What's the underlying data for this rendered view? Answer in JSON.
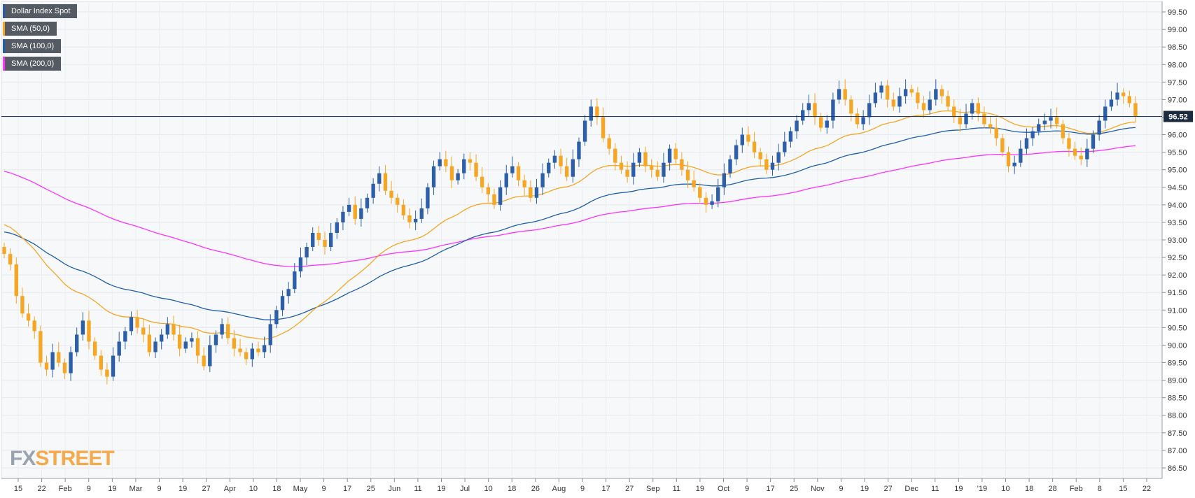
{
  "legend": [
    {
      "label": "Dollar Index Spot",
      "color": "#2a5aa8"
    },
    {
      "label": "SMA (50,0)",
      "color": "#f5a623"
    },
    {
      "label": "SMA (100,0)",
      "color": "#1f5fa8"
    },
    {
      "label": "SMA (200,0)",
      "color": "#ff33ff"
    }
  ],
  "logo": {
    "fx": "FX",
    "street": "STREET"
  },
  "chart_data": {
    "type": "candlestick",
    "y_axis": {
      "ticks": [
        "99.50",
        "99.00",
        "98.50",
        "98.00",
        "97.50",
        "97.00",
        "96.50",
        "96.00",
        "95.50",
        "95.00",
        "94.50",
        "94.00",
        "93.50",
        "93.00",
        "92.50",
        "92.00",
        "91.50",
        "91.00",
        "90.50",
        "90.00",
        "89.50",
        "89.00",
        "88.50",
        "88.00",
        "87.50",
        "87.00",
        "86.50"
      ],
      "range": [
        86.2,
        99.8
      ]
    },
    "x_axis": {
      "labels": [
        "15",
        "22",
        "Feb",
        "9",
        "19",
        "Mar",
        "9",
        "19",
        "27",
        "Apr",
        "10",
        "18",
        "May",
        "9",
        "17",
        "25",
        "Jun",
        "11",
        "19",
        "Jul",
        "10",
        "18",
        "26",
        "Aug",
        "9",
        "17",
        "27",
        "Sep",
        "11",
        "19",
        "Oct",
        "9",
        "17",
        "25",
        "Nov",
        "9",
        "19",
        "27",
        "Dec",
        "11",
        "19",
        "'19",
        "10",
        "18",
        "28",
        "Feb",
        "8",
        "15",
        "22"
      ]
    },
    "current_price": {
      "value": 96.52,
      "label": "96.52"
    },
    "colors": {
      "bull": "#2c5fa8",
      "bear": "#f5a623",
      "sma50": "#f5a623",
      "sma100": "#1f5fa8",
      "sma200": "#ff33ff",
      "price_line": "#1c3d6e"
    },
    "series": {
      "close": [
        92.6,
        92.3,
        91.4,
        90.9,
        90.7,
        90.4,
        89.5,
        89.3,
        89.8,
        89.5,
        89.2,
        89.8,
        90.3,
        90.7,
        90.1,
        89.7,
        89.3,
        89.1,
        89.7,
        90.1,
        90.4,
        90.8,
        90.5,
        90.3,
        89.8,
        90.1,
        90.3,
        90.6,
        90.3,
        89.9,
        90.1,
        90.2,
        89.7,
        89.4,
        90.0,
        90.3,
        90.6,
        90.2,
        89.9,
        89.8,
        89.6,
        89.9,
        89.8,
        90.0,
        90.6,
        91.0,
        91.4,
        91.6,
        92.1,
        92.5,
        92.8,
        93.2,
        93.0,
        92.8,
        93.2,
        93.5,
        93.8,
        94.0,
        93.6,
        93.9,
        94.2,
        94.6,
        94.9,
        94.4,
        94.2,
        94.0,
        93.7,
        93.5,
        93.6,
        93.9,
        94.5,
        95.1,
        95.3,
        95.1,
        94.7,
        94.9,
        95.3,
        95.2,
        94.8,
        94.5,
        94.3,
        94.0,
        94.5,
        94.9,
        95.1,
        94.7,
        94.5,
        94.2,
        94.5,
        94.9,
        95.2,
        95.4,
        95.1,
        94.8,
        95.3,
        95.8,
        96.4,
        96.8,
        96.5,
        95.9,
        95.6,
        95.2,
        95.0,
        94.8,
        95.2,
        95.5,
        95.1,
        95.0,
        94.8,
        95.2,
        95.6,
        95.3,
        95.0,
        94.7,
        94.5,
        94.2,
        94.0,
        94.1,
        94.5,
        94.9,
        95.3,
        95.7,
        96.0,
        95.8,
        95.5,
        95.3,
        95.0,
        95.2,
        95.5,
        95.8,
        96.1,
        96.4,
        96.7,
        96.9,
        96.5,
        96.2,
        96.4,
        97.0,
        97.3,
        97.0,
        96.6,
        96.3,
        96.5,
        96.9,
        97.2,
        97.4,
        97.0,
        96.8,
        97.1,
        97.3,
        97.2,
        96.9,
        96.7,
        97.0,
        97.3,
        97.1,
        96.8,
        96.5,
        96.3,
        96.6,
        96.9,
        96.6,
        96.3,
        96.2,
        95.9,
        95.5,
        95.1,
        95.2,
        95.6,
        95.9,
        96.1,
        96.3,
        96.4,
        96.5,
        96.3,
        95.9,
        95.6,
        95.4,
        95.3,
        95.6,
        96.0,
        96.4,
        96.8,
        97.0,
        97.2,
        97.1,
        96.9,
        96.52
      ],
      "sma50_start": 93.5,
      "sma100_start": 93.25,
      "sma200_start": 95.0
    }
  }
}
